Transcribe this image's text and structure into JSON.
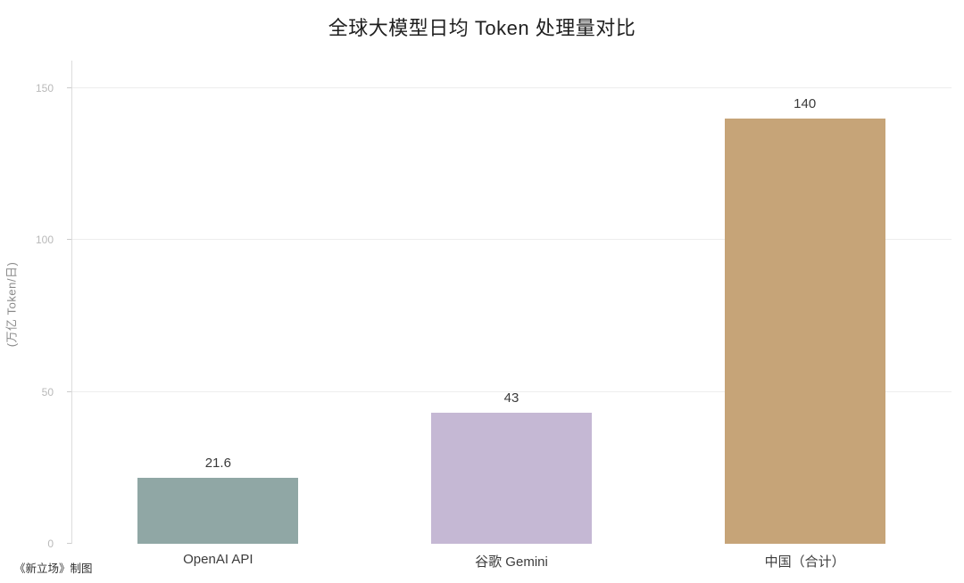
{
  "title": "全球大模型日均 Token 处理量对比",
  "footer": {
    "credit": "《新立场》制图"
  },
  "chart_data": {
    "type": "bar",
    "title": "全球大模型日均 Token 处理量对比",
    "categories": [
      "OpenAI API",
      "谷歌 Gemini",
      "中国（合计）"
    ],
    "values": [
      21.6,
      43,
      140
    ],
    "value_labels": [
      "21.6",
      "43",
      "140"
    ],
    "bar_colors": [
      "#90A7A5",
      "#C5B8D4",
      "#C6A478"
    ],
    "xlabel": "",
    "ylabel": "(万亿 Token/日)",
    "yticks": [
      0,
      50,
      100,
      150
    ],
    "ylim": [
      0,
      159
    ],
    "grid": true,
    "legend": false,
    "credit": "《新立场》制图"
  }
}
